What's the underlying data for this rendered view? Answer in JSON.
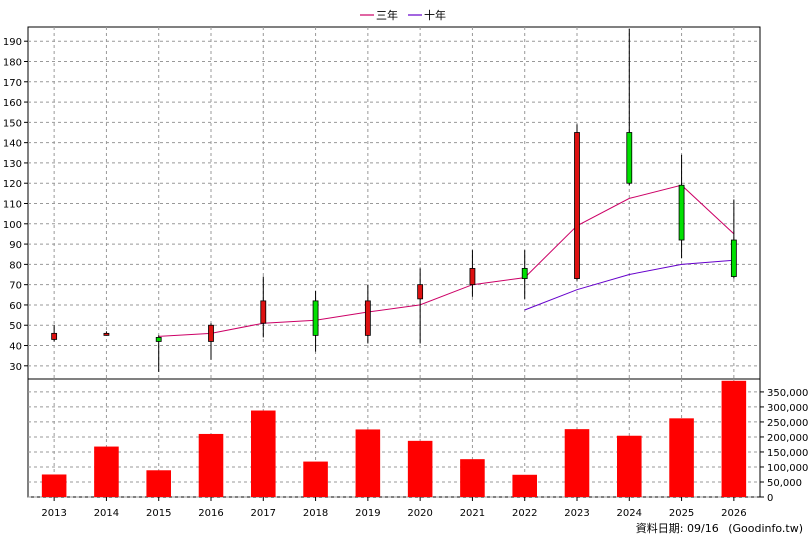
{
  "chart_data": {
    "type": "candlestick",
    "years": [
      "2013",
      "2014",
      "2015",
      "2016",
      "2017",
      "2018",
      "2019",
      "2020",
      "2021",
      "2022",
      "2023",
      "2024",
      "2025",
      "2026"
    ],
    "price_axis": {
      "ticks": [
        30,
        40,
        50,
        60,
        70,
        80,
        90,
        100,
        110,
        120,
        130,
        140,
        150,
        160,
        170,
        180,
        190
      ]
    },
    "volume_axis": {
      "ticks": [
        0,
        50000,
        100000,
        150000,
        200000,
        250000,
        300000,
        350000
      ],
      "tick_labels": [
        "0",
        "50,000",
        "100,000",
        "150,000",
        "200,000",
        "250,000",
        "300,000",
        "350,000"
      ]
    },
    "candles": [
      {
        "year": "2013",
        "open": 46,
        "close": 43,
        "high": 50,
        "low": 42
      },
      {
        "year": "2014",
        "open": 46,
        "close": 45,
        "high": 47,
        "low": 45
      },
      {
        "year": "2015",
        "open": 42,
        "close": 44,
        "high": 45,
        "low": 27
      },
      {
        "year": "2016",
        "open": 50,
        "close": 42,
        "high": 51,
        "low": 33
      },
      {
        "year": "2017",
        "open": 62,
        "close": 51,
        "high": 74,
        "low": 44
      },
      {
        "year": "2018",
        "open": 45,
        "close": 62,
        "high": 67,
        "low": 37
      },
      {
        "year": "2019",
        "open": 62,
        "close": 45,
        "high": 70,
        "low": 41
      },
      {
        "year": "2020",
        "open": 70,
        "close": 63,
        "high": 78,
        "low": 41
      },
      {
        "year": "2021",
        "open": 78,
        "close": 70,
        "high": 87,
        "low": 64
      },
      {
        "year": "2022",
        "open": 73,
        "close": 78,
        "high": 87,
        "low": 63
      },
      {
        "year": "2023",
        "open": 145,
        "close": 73,
        "high": 149,
        "low": 72
      },
      {
        "year": "2024",
        "open": 120,
        "close": 145,
        "high": 196,
        "low": 119
      },
      {
        "year": "2025",
        "open": 92,
        "close": 119,
        "high": 134,
        "low": 83
      },
      {
        "year": "2026",
        "open": 74,
        "close": 92,
        "high": 112,
        "low": 73
      }
    ],
    "volume": [
      75000,
      168000,
      89000,
      210000,
      288000,
      118000,
      225000,
      187000,
      126000,
      74000,
      226000,
      204000,
      262000,
      387000
    ],
    "series": [
      {
        "name": "三年",
        "color": "#cc0066",
        "start_index": 2,
        "values": [
          44.5,
          46,
          51,
          52.5,
          56.5,
          60,
          70,
          73.5,
          99,
          112.5,
          119,
          95
        ]
      },
      {
        "name": "十年",
        "color": "#6600cc",
        "start_index": 9,
        "values": [
          57.5,
          67.5,
          75,
          80,
          82
        ]
      }
    ],
    "colors": {
      "up": "#00e000",
      "down": "#dd1111",
      "volume": "#ff0000",
      "grid": "#999999"
    }
  },
  "footer": {
    "date_label": "資料日期: 09/16",
    "source": "(Goodinfo.tw)"
  }
}
